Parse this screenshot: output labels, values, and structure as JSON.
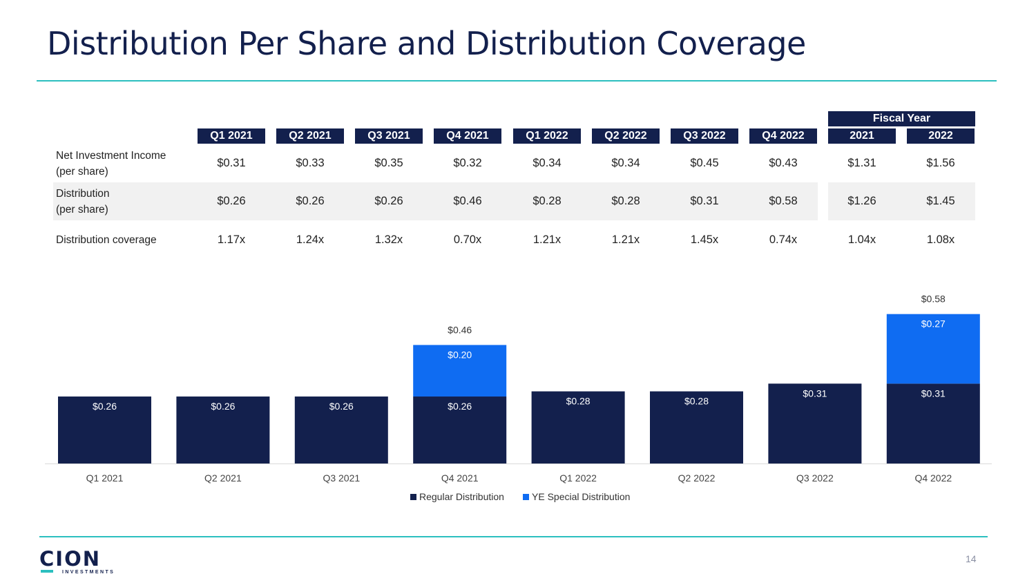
{
  "title": "Distribution Per Share and Distribution Coverage",
  "table": {
    "fiscal_year_label": "Fiscal Year",
    "columns": [
      "Q1 2021",
      "Q2 2021",
      "Q3 2021",
      "Q4 2021",
      "Q1 2022",
      "Q2 2022",
      "Q3 2022",
      "Q4 2022",
      "2021",
      "2022"
    ],
    "rows": [
      {
        "label_line1": "Net Investment Income",
        "label_line2": "(per share)",
        "values": [
          "$0.31",
          "$0.33",
          "$0.35",
          "$0.32",
          "$0.34",
          "$0.34",
          "$0.45",
          "$0.43",
          "$1.31",
          "$1.56"
        ]
      },
      {
        "label_line1": "Distribution",
        "label_line2": "(per share)",
        "values": [
          "$0.26",
          "$0.26",
          "$0.26",
          "$0.46",
          "$0.28",
          "$0.28",
          "$0.31",
          "$0.58",
          "$1.26",
          "$1.45"
        ]
      },
      {
        "label_line1": "Distribution coverage",
        "label_line2": "",
        "values": [
          "1.17x",
          "1.24x",
          "1.32x",
          "0.70x",
          "1.21x",
          "1.21x",
          "1.45x",
          "0.74x",
          "1.04x",
          "1.08x"
        ]
      }
    ]
  },
  "chart_data": {
    "type": "bar",
    "stacked": true,
    "categories": [
      "Q1 2021",
      "Q2 2021",
      "Q3 2021",
      "Q4 2021",
      "Q1 2022",
      "Q2 2022",
      "Q3 2022",
      "Q4 2022"
    ],
    "series": [
      {
        "name": "Regular Distribution",
        "color": "#13204d",
        "values": [
          0.26,
          0.26,
          0.26,
          0.26,
          0.28,
          0.28,
          0.31,
          0.31
        ],
        "labels": [
          "$0.26",
          "$0.26",
          "$0.26",
          "$0.26",
          "$0.28",
          "$0.28",
          "$0.31",
          "$0.31"
        ]
      },
      {
        "name": "YE Special Distribution",
        "color": "#0f6cf2",
        "values": [
          0,
          0,
          0,
          0.2,
          0,
          0,
          0,
          0.27
        ],
        "labels": [
          "",
          "",
          "",
          "$0.20",
          "",
          "",
          "",
          "$0.27"
        ]
      }
    ],
    "totals": [
      "",
      "",
      "",
      "$0.46",
      "",
      "",
      "",
      "$0.58"
    ],
    "ylim": [
      0,
      0.62
    ],
    "legend_position": "bottom-center"
  },
  "footer": {
    "logo_text": "CION",
    "logo_subtext": "INVESTMENTS",
    "page_number": "14"
  }
}
